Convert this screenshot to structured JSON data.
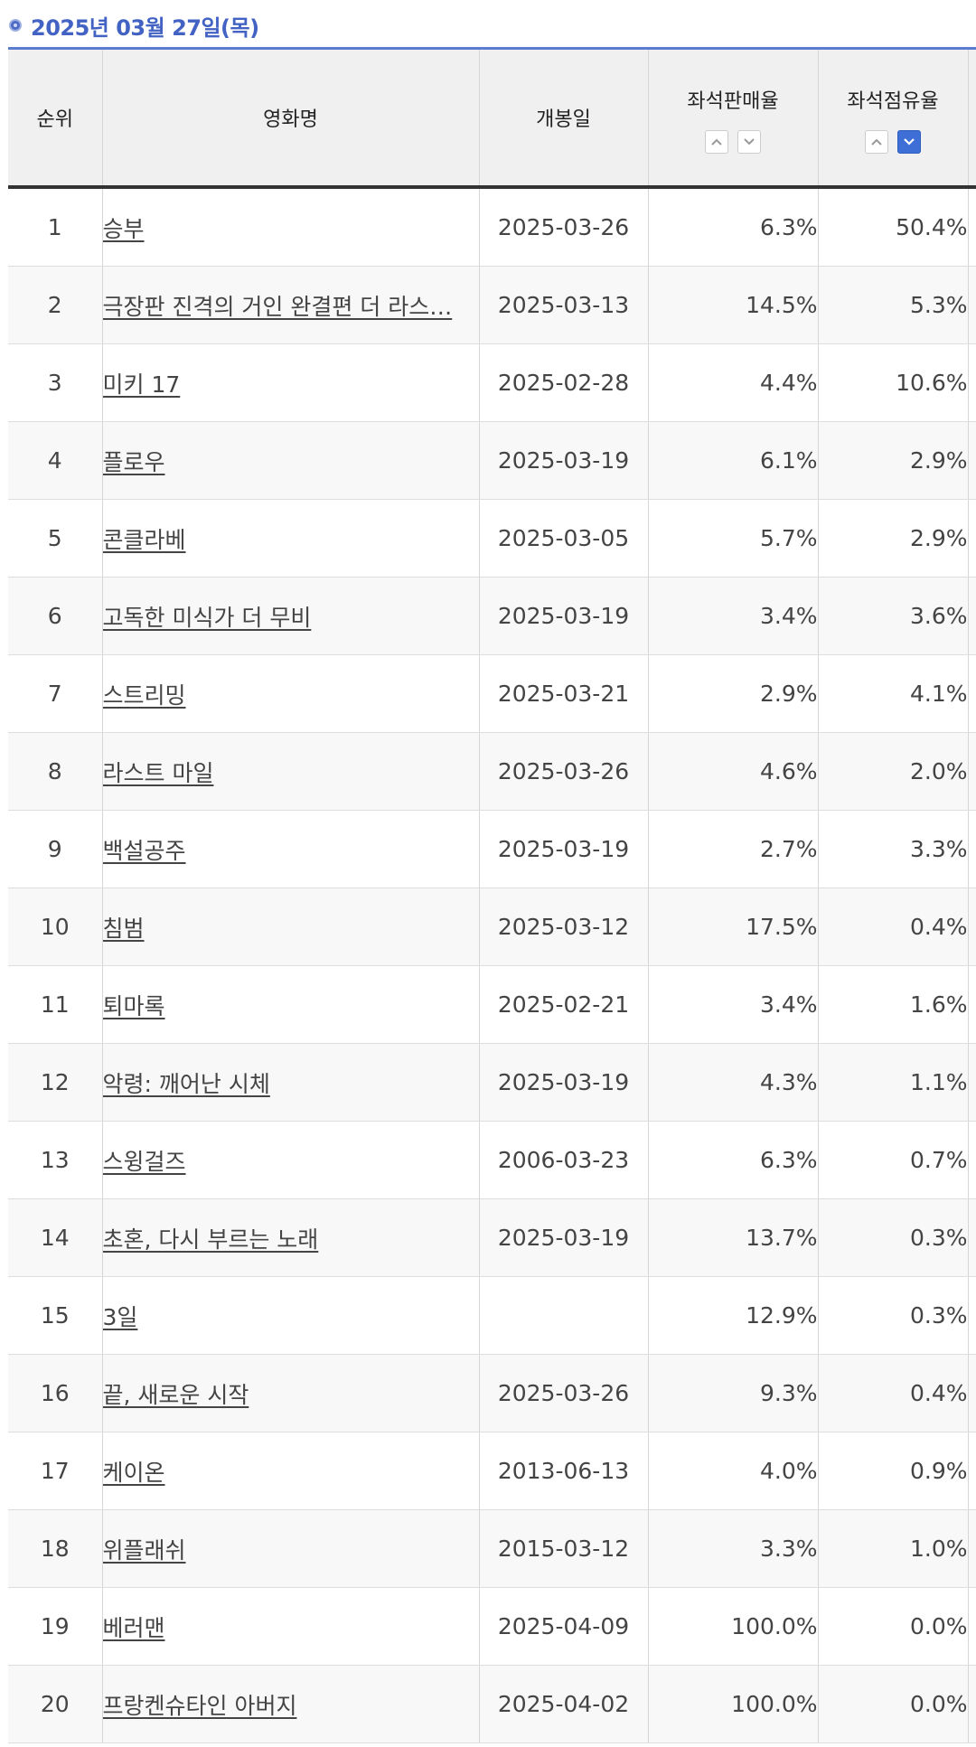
{
  "header": {
    "date_label": "2025년 03월 27일(목)"
  },
  "colors": {
    "accent": "#4262c4",
    "active_sort": "#3d6fd6"
  },
  "table": {
    "columns": {
      "rank": "순위",
      "title": "영화명",
      "release": "개봉일",
      "sales_rate": "좌석판매율",
      "share_rate": "좌석점유율"
    },
    "sort_icons": {
      "up": "chevron-up-icon",
      "down": "chevron-down-icon"
    },
    "rows": [
      {
        "rank": "1",
        "title": "승부",
        "release": "2025-03-26",
        "sales": "6.3%",
        "share": "50.4%"
      },
      {
        "rank": "2",
        "title": "극장판 진격의 거인 완결편 더 라스…",
        "release": "2025-03-13",
        "sales": "14.5%",
        "share": "5.3%"
      },
      {
        "rank": "3",
        "title": "미키 17",
        "release": "2025-02-28",
        "sales": "4.4%",
        "share": "10.6%"
      },
      {
        "rank": "4",
        "title": "플로우",
        "release": "2025-03-19",
        "sales": "6.1%",
        "share": "2.9%"
      },
      {
        "rank": "5",
        "title": "콘클라베",
        "release": "2025-03-05",
        "sales": "5.7%",
        "share": "2.9%"
      },
      {
        "rank": "6",
        "title": "고독한 미식가 더 무비",
        "release": "2025-03-19",
        "sales": "3.4%",
        "share": "3.6%"
      },
      {
        "rank": "7",
        "title": "스트리밍",
        "release": "2025-03-21",
        "sales": "2.9%",
        "share": "4.1%"
      },
      {
        "rank": "8",
        "title": "라스트 마일",
        "release": "2025-03-26",
        "sales": "4.6%",
        "share": "2.0%"
      },
      {
        "rank": "9",
        "title": "백설공주",
        "release": "2025-03-19",
        "sales": "2.7%",
        "share": "3.3%"
      },
      {
        "rank": "10",
        "title": "침범",
        "release": "2025-03-12",
        "sales": "17.5%",
        "share": "0.4%"
      },
      {
        "rank": "11",
        "title": "퇴마록",
        "release": "2025-02-21",
        "sales": "3.4%",
        "share": "1.6%"
      },
      {
        "rank": "12",
        "title": "악령: 깨어난 시체",
        "release": "2025-03-19",
        "sales": "4.3%",
        "share": "1.1%"
      },
      {
        "rank": "13",
        "title": "스윙걸즈",
        "release": "2006-03-23",
        "sales": "6.3%",
        "share": "0.7%"
      },
      {
        "rank": "14",
        "title": "초혼, 다시 부르는 노래",
        "release": "2025-03-19",
        "sales": "13.7%",
        "share": "0.3%"
      },
      {
        "rank": "15",
        "title": "3일",
        "release": "",
        "sales": "12.9%",
        "share": "0.3%"
      },
      {
        "rank": "16",
        "title": "끝, 새로운 시작",
        "release": "2025-03-26",
        "sales": "9.3%",
        "share": "0.4%"
      },
      {
        "rank": "17",
        "title": "케이온",
        "release": "2013-06-13",
        "sales": "4.0%",
        "share": "0.9%"
      },
      {
        "rank": "18",
        "title": "위플래쉬",
        "release": "2015-03-12",
        "sales": "3.3%",
        "share": "1.0%"
      },
      {
        "rank": "19",
        "title": "베러맨",
        "release": "2025-04-09",
        "sales": "100.0%",
        "share": "0.0%"
      },
      {
        "rank": "20",
        "title": "프랑켄슈타인 아버지",
        "release": "2025-04-02",
        "sales": "100.0%",
        "share": "0.0%"
      }
    ]
  }
}
